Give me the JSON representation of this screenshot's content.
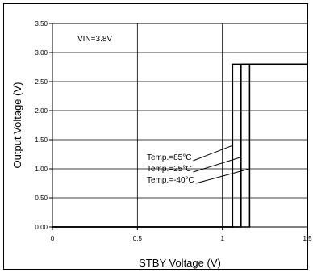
{
  "chart_data": {
    "type": "line",
    "title": "",
    "xlabel": "STBY Voltage (V)",
    "ylabel": "Output Voltage (V)",
    "xlim": [
      0,
      1.5
    ],
    "ylim": [
      0,
      3.5
    ],
    "x_ticks": [
      "0",
      "0.5",
      "1",
      "1.5"
    ],
    "y_ticks": [
      "0.00",
      "0.50",
      "1.00",
      "1.50",
      "2.00",
      "2.50",
      "3.00",
      "3.50"
    ],
    "grid": "vertical-major",
    "condition_label": "VIN=3.8V",
    "series": [
      {
        "name": "Temp.=85°C",
        "threshold": 1.06,
        "points": [
          [
            0,
            0
          ],
          [
            1.06,
            0
          ],
          [
            1.06,
            2.8
          ],
          [
            1.5,
            2.8
          ]
        ]
      },
      {
        "name": "Temp.=25°C",
        "threshold": 1.11,
        "points": [
          [
            0,
            0
          ],
          [
            1.11,
            0
          ],
          [
            1.11,
            2.8
          ],
          [
            1.5,
            2.8
          ]
        ]
      },
      {
        "name": "Temp.=-40°C",
        "threshold": 1.16,
        "points": [
          [
            0,
            0
          ],
          [
            1.16,
            0
          ],
          [
            1.16,
            2.8
          ],
          [
            1.5,
            2.8
          ]
        ]
      }
    ],
    "annotations": [
      {
        "label": "Temp.=85°C",
        "target": [
          1.06,
          1.4
        ]
      },
      {
        "label": "Temp.=25°C",
        "target": [
          1.11,
          1.2
        ]
      },
      {
        "label": "Temp.=-40°C",
        "target": [
          1.16,
          1.0
        ]
      }
    ]
  }
}
